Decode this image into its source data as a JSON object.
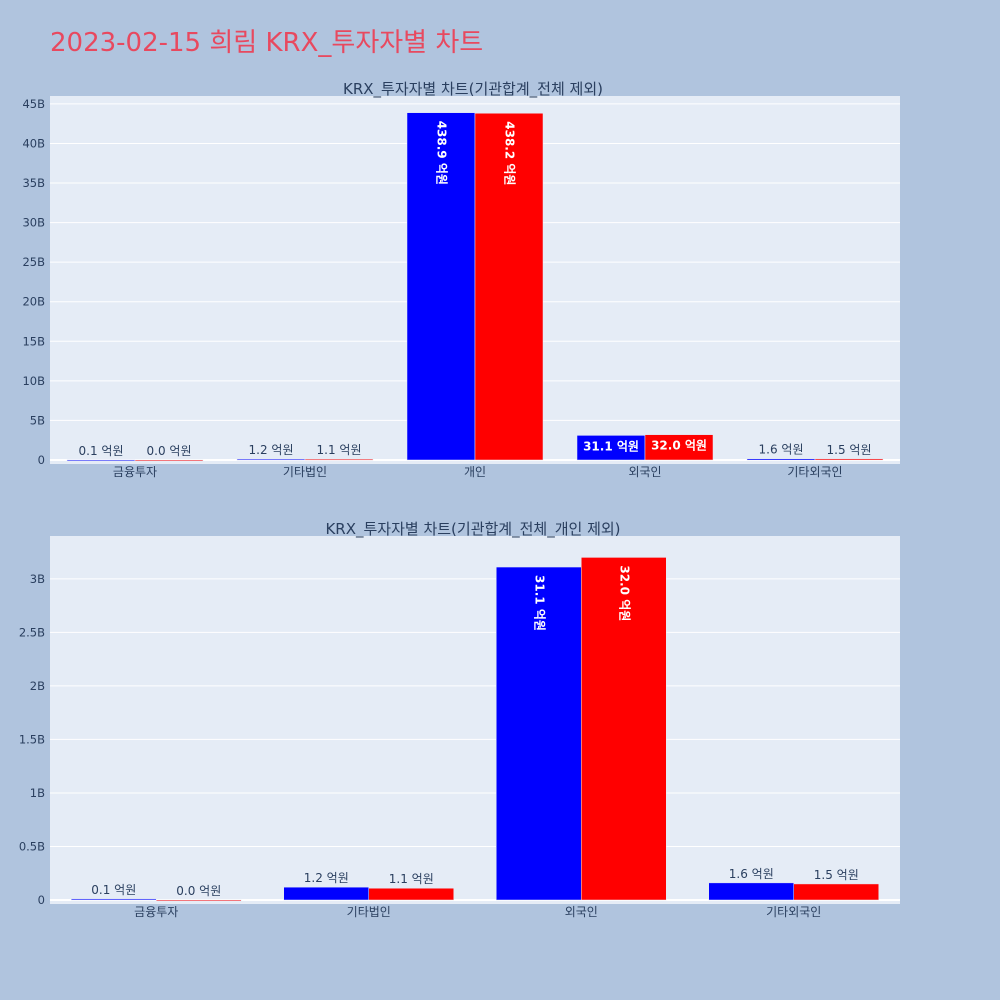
{
  "title": "2023-02-15 희림 KRX_투자자별 차트",
  "colors": {
    "title": "#e8495f",
    "background": "#b0c4de",
    "plot_bg": "#e5ecf6",
    "series_a": "#0000ff",
    "series_b": "#ff0000"
  },
  "chart_data": [
    {
      "type": "bar",
      "title": "KRX_투자자별 차트(기관합계_전체 제외)",
      "categories": [
        "금융투자",
        "기타법인",
        "개인",
        "외국인",
        "기타외국인"
      ],
      "series": [
        {
          "values": [
            10000000,
            120000000,
            43890000000,
            3110000000,
            160000000
          ],
          "labels": [
            "0.1 억원",
            "1.2 억원",
            "438.9 억원",
            "31.1 억원",
            "1.6 억원"
          ]
        },
        {
          "values": [
            0,
            110000000,
            43820000000,
            3200000000,
            150000000
          ],
          "labels": [
            "0.0 억원",
            "1.1 억원",
            "438.2 억원",
            "32.0 억원",
            "1.5 억원"
          ]
        }
      ],
      "ylim": [
        0,
        46000000000
      ],
      "yticks": [
        0,
        5000000000,
        10000000000,
        15000000000,
        20000000000,
        25000000000,
        30000000000,
        35000000000,
        40000000000,
        45000000000
      ],
      "ytick_labels": [
        "0",
        "5B",
        "10B",
        "15B",
        "20B",
        "25B",
        "30B",
        "35B",
        "40B",
        "45B"
      ],
      "grid": true,
      "legend": "none"
    },
    {
      "type": "bar",
      "title": "KRX_투자자별 차트(기관합계_전체_개인 제외)",
      "categories": [
        "금융투자",
        "기타법인",
        "외국인",
        "기타외국인"
      ],
      "series": [
        {
          "values": [
            10000000,
            120000000,
            3110000000,
            160000000
          ],
          "labels": [
            "0.1 억원",
            "1.2 억원",
            "31.1 억원",
            "1.6 억원"
          ]
        },
        {
          "values": [
            0,
            110000000,
            3200000000,
            150000000
          ],
          "labels": [
            "0.0 억원",
            "1.1 억원",
            "32.0 억원",
            "1.5 억원"
          ]
        }
      ],
      "ylim": [
        0,
        3400000000
      ],
      "yticks": [
        0,
        500000000,
        1000000000,
        1500000000,
        2000000000,
        2500000000,
        3000000000
      ],
      "ytick_labels": [
        "0",
        "0.5B",
        "1B",
        "1.5B",
        "2B",
        "2.5B",
        "3B"
      ],
      "grid": true,
      "legend": "none"
    }
  ]
}
